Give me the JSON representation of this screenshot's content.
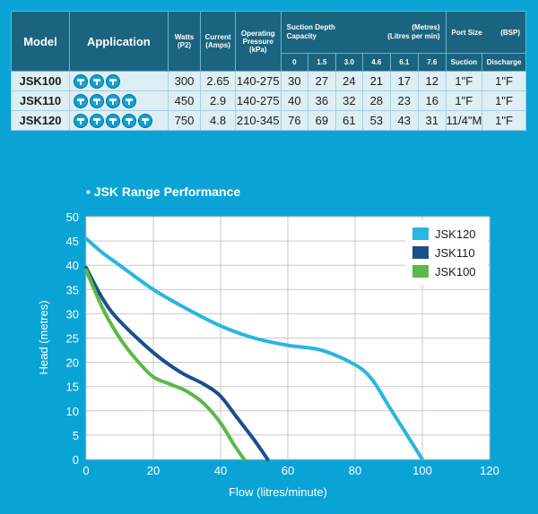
{
  "table": {
    "headers": {
      "model": "Model",
      "application": "Application",
      "watts": [
        "Watts",
        "(P2)"
      ],
      "current": [
        "Current",
        "(Amps)"
      ],
      "pressure": [
        "Operating",
        "Pressure",
        "(kPa)"
      ],
      "suction_left": [
        "Suction Depth",
        "Capacity"
      ],
      "suction_right": [
        "(Metres)",
        "(Litres per min)"
      ],
      "depths": [
        "0",
        "1.5",
        "3.0",
        "4.6",
        "6.1",
        "7.6"
      ],
      "port_size": "Port Size",
      "port_unit": "(BSP)",
      "suction": "Suction",
      "discharge": "Discharge"
    },
    "rows": [
      {
        "model": "JSK100",
        "app_icons": 3,
        "watts": "300",
        "current": "2.65",
        "pressure": "140-275",
        "capacity": [
          "30",
          "27",
          "24",
          "21",
          "17",
          "12"
        ],
        "suction": "1\"F",
        "discharge": "1\"F"
      },
      {
        "model": "JSK110",
        "app_icons": 4,
        "watts": "450",
        "current": "2.9",
        "pressure": "140-275",
        "capacity": [
          "40",
          "36",
          "32",
          "28",
          "23",
          "16"
        ],
        "suction": "1\"F",
        "discharge": "1\"F"
      },
      {
        "model": "JSK120",
        "app_icons": 5,
        "watts": "750",
        "current": "4.8",
        "pressure": "210-345",
        "capacity": [
          "76",
          "69",
          "61",
          "53",
          "43",
          "31"
        ],
        "suction": "11/4\"M",
        "discharge": "1\"F"
      }
    ],
    "app_icon": "tap-icon"
  },
  "chart_data": {
    "type": "line",
    "title": "• JSK Range Performance",
    "xlabel": "Flow (litres/minute)",
    "ylabel": "Head (metres)",
    "xlim": [
      0,
      120
    ],
    "ylim": [
      0,
      50
    ],
    "xticks": [
      0,
      20,
      40,
      60,
      80,
      100,
      120
    ],
    "yticks": [
      0,
      5,
      10,
      15,
      20,
      25,
      30,
      35,
      40,
      45,
      50
    ],
    "grid": true,
    "legend": "top-right",
    "series": [
      {
        "name": "JSK120",
        "color": "#29b6e0",
        "points": [
          [
            0,
            45.5
          ],
          [
            5,
            42.5
          ],
          [
            10,
            40
          ],
          [
            20,
            35
          ],
          [
            30,
            31
          ],
          [
            40,
            27.5
          ],
          [
            50,
            25
          ],
          [
            60,
            23.5
          ],
          [
            70,
            22.5
          ],
          [
            80,
            19.5
          ],
          [
            85,
            16.5
          ],
          [
            90,
            11
          ],
          [
            95,
            5.5
          ],
          [
            100,
            0
          ]
        ]
      },
      {
        "name": "JSK110",
        "color": "#1b4f8e",
        "points": [
          [
            0,
            39.5
          ],
          [
            5,
            33
          ],
          [
            10,
            28.5
          ],
          [
            20,
            22
          ],
          [
            28,
            18
          ],
          [
            35,
            15.5
          ],
          [
            40,
            13
          ],
          [
            45,
            8.5
          ],
          [
            50,
            4
          ],
          [
            54,
            0
          ]
        ]
      },
      {
        "name": "JSK100",
        "color": "#5cb84a",
        "points": [
          [
            0,
            39
          ],
          [
            5,
            31
          ],
          [
            10,
            25
          ],
          [
            15,
            20.5
          ],
          [
            20,
            17
          ],
          [
            25,
            15.5
          ],
          [
            30,
            14
          ],
          [
            35,
            11.5
          ],
          [
            40,
            7.5
          ],
          [
            44,
            3
          ],
          [
            47,
            0
          ]
        ]
      }
    ]
  }
}
